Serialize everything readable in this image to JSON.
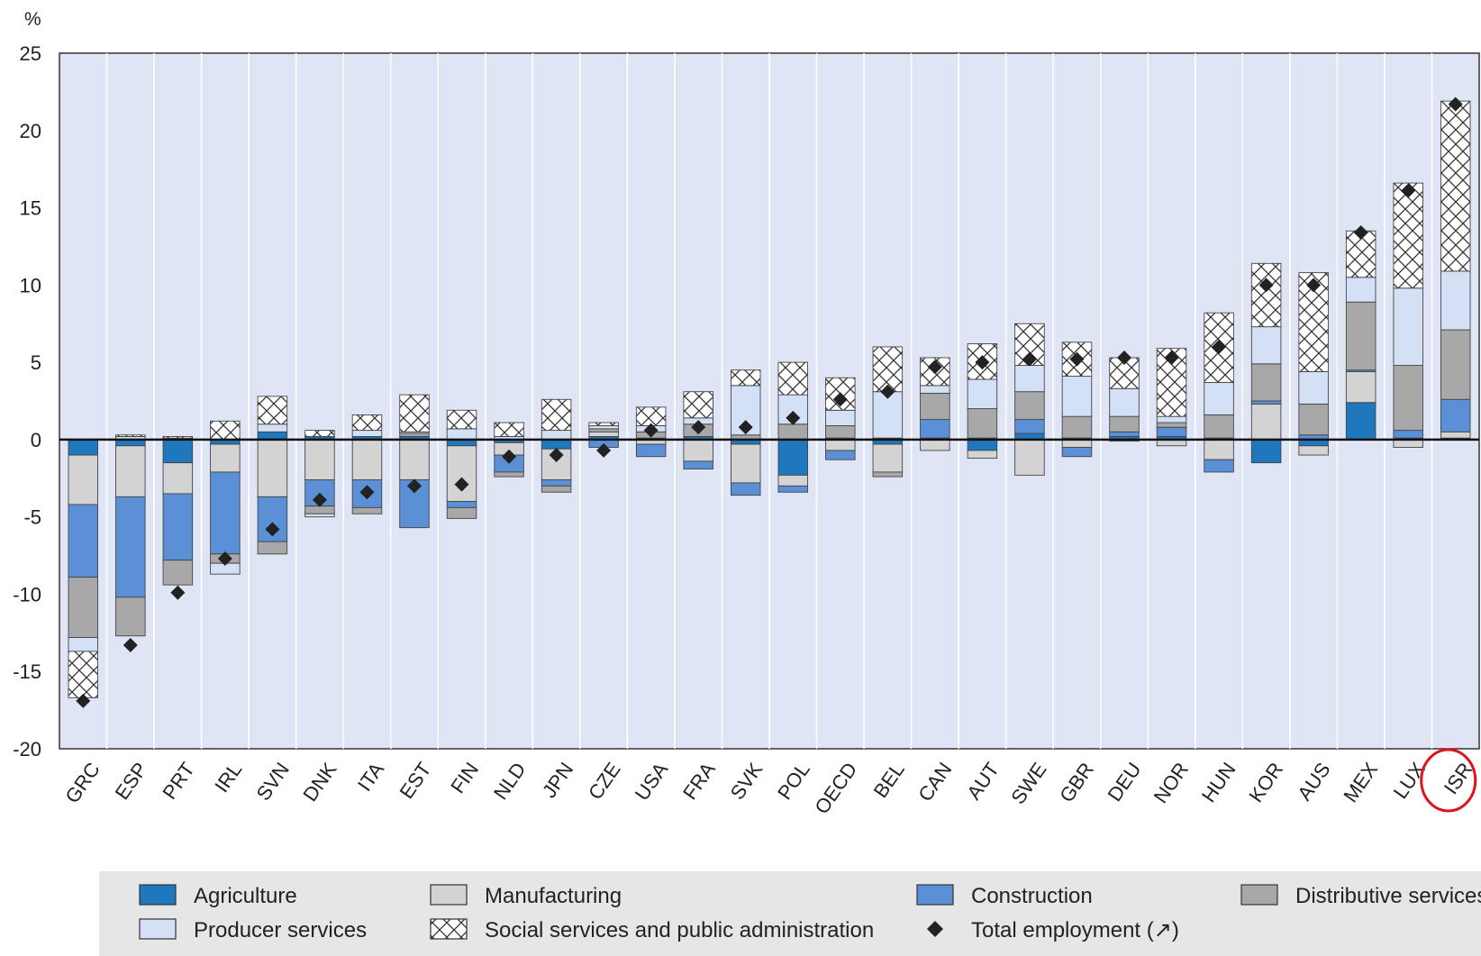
{
  "chart_data": {
    "type": "bar",
    "stacked": true,
    "unit_label": "%",
    "ylim": [
      -20,
      25
    ],
    "yticks": [
      25,
      20,
      15,
      10,
      5,
      0,
      -5,
      -10,
      -15,
      -20
    ],
    "grid": "vertical",
    "legend_position": "bottom",
    "categories": [
      "GRC",
      "ESP",
      "PRT",
      "IRL",
      "SVN",
      "DNK",
      "ITA",
      "EST",
      "FIN",
      "NLD",
      "JPN",
      "CZE",
      "USA",
      "FRA",
      "SVK",
      "POL",
      "OECD",
      "BEL",
      "CAN",
      "AUT",
      "SWE",
      "GBR",
      "DEU",
      "NOR",
      "HUN",
      "KOR",
      "AUS",
      "MEX",
      "LUX",
      "ISR"
    ],
    "highlighted_category": "ISR",
    "series": [
      {
        "name": "Agriculture",
        "color": "#1f77bd",
        "pattern": "solid",
        "values": [
          -1.0,
          -0.4,
          -1.5,
          -0.3,
          0.5,
          0.2,
          0.2,
          0.2,
          -0.4,
          -0.2,
          -0.6,
          0.2,
          0.1,
          0.2,
          -0.3,
          -2.3,
          0.1,
          -0.3,
          0.1,
          -0.7,
          0.4,
          0.1,
          0.2,
          0.2,
          0.1,
          -1.5,
          -0.4,
          2.4,
          0.1,
          0.1
        ]
      },
      {
        "name": "Manufacturing",
        "color": "#d3d3d3",
        "pattern": "solid",
        "values": [
          -3.2,
          -3.3,
          -2.0,
          -1.8,
          -3.7,
          -2.6,
          -2.6,
          -2.6,
          -3.6,
          -0.8,
          -2.0,
          0.3,
          -0.3,
          -1.4,
          -2.5,
          -0.7,
          -0.7,
          -1.8,
          -0.7,
          -0.5,
          -2.3,
          -0.5,
          -0.1,
          -0.4,
          -1.3,
          2.3,
          -0.6,
          2.0,
          -0.5,
          0.4
        ]
      },
      {
        "name": "Construction",
        "color": "#5b8fd6",
        "pattern": "solid",
        "values": [
          -4.7,
          -6.5,
          -4.3,
          -5.3,
          -2.9,
          -1.7,
          -1.8,
          -3.1,
          -0.4,
          -1.1,
          -0.4,
          -0.5,
          -0.8,
          -0.5,
          -0.8,
          -0.4,
          -0.6,
          0.1,
          1.2,
          0.1,
          0.9,
          -0.6,
          0.3,
          0.6,
          -0.8,
          0.2,
          0.3,
          0.1,
          0.5,
          2.1
        ]
      },
      {
        "name": "Distributive services",
        "color": "#a8a8a8",
        "pattern": "solid",
        "values": [
          -3.9,
          -2.5,
          -1.6,
          -0.6,
          -0.8,
          -0.5,
          -0.4,
          0.2,
          -0.7,
          -0.3,
          -0.4,
          0.2,
          0.4,
          0.8,
          0.3,
          1.0,
          0.8,
          -0.3,
          1.7,
          1.9,
          1.8,
          1.4,
          1.0,
          0.3,
          1.5,
          2.4,
          2.0,
          4.4,
          4.2,
          4.5
        ]
      },
      {
        "name": "Producer services",
        "color": "#d4e0f6",
        "pattern": "solid",
        "values": [
          -0.9,
          0.2,
          0.1,
          -0.7,
          0.5,
          -0.2,
          0.4,
          0.1,
          0.7,
          0.2,
          0.6,
          0.2,
          0.4,
          0.4,
          3.2,
          1.9,
          1.0,
          3.0,
          0.5,
          1.9,
          1.7,
          2.6,
          1.8,
          0.4,
          2.1,
          2.4,
          2.1,
          1.6,
          5.0,
          3.8
        ]
      },
      {
        "name": "Social services and public administration",
        "color": "#ffffff",
        "pattern": "crosshatch",
        "values": [
          -3.0,
          0.1,
          0.1,
          1.2,
          1.8,
          0.4,
          1.0,
          2.4,
          1.2,
          0.9,
          2.0,
          0.2,
          1.2,
          1.7,
          1.0,
          2.1,
          2.1,
          2.9,
          1.8,
          2.3,
          2.7,
          2.2,
          2.0,
          4.4,
          4.5,
          4.1,
          6.4,
          3.0,
          6.8,
          11.0
        ]
      }
    ],
    "total_employment": {
      "name": "Total employment (↗)",
      "marker": "diamond",
      "values": [
        -16.9,
        -13.3,
        -9.9,
        -7.7,
        -5.8,
        -3.9,
        -3.4,
        -3.0,
        -2.9,
        -1.1,
        -1.0,
        -0.7,
        0.6,
        0.8,
        0.8,
        1.4,
        2.6,
        3.1,
        4.7,
        5.0,
        5.2,
        5.2,
        5.3,
        5.3,
        6.0,
        10.0,
        10.0,
        13.4,
        16.1,
        21.7
      ]
    }
  }
}
